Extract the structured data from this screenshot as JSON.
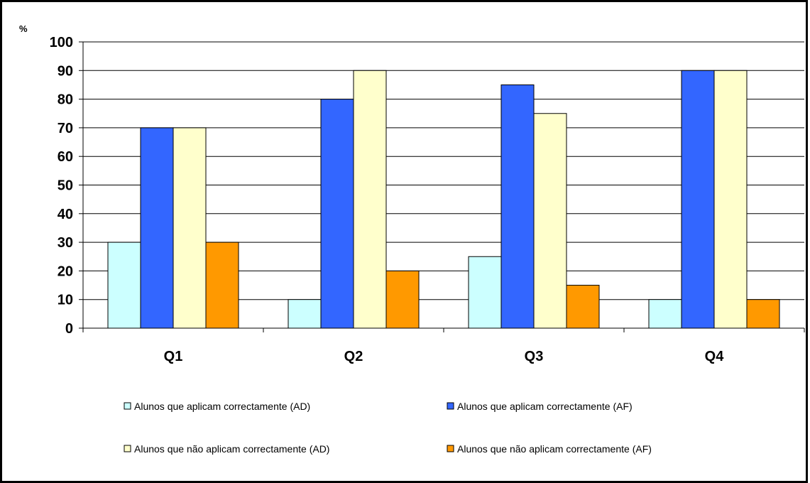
{
  "chart_data": {
    "type": "bar",
    "ylabel": "%",
    "ylim": [
      0,
      100
    ],
    "yticks": [
      0,
      10,
      20,
      30,
      40,
      50,
      60,
      70,
      80,
      90,
      100
    ],
    "grid": true,
    "legend_position": "bottom",
    "categories": [
      "Q1",
      "Q2",
      "Q3",
      "Q4"
    ],
    "series": [
      {
        "name": "Alunos que aplicam correctamente (AD)",
        "color": "#ccffff",
        "values": [
          30,
          10,
          25,
          10
        ]
      },
      {
        "name": "Alunos que aplicam correctamente (AF)",
        "color": "#3366ff",
        "values": [
          70,
          80,
          85,
          90
        ]
      },
      {
        "name": "Alunos que não aplicam correctamente (AD)",
        "color": "#ffffcc",
        "values": [
          70,
          90,
          75,
          90
        ]
      },
      {
        "name": "Alunos que não aplicam correctamente (AF)",
        "color": "#ff9900",
        "values": [
          30,
          20,
          15,
          10
        ]
      }
    ]
  }
}
